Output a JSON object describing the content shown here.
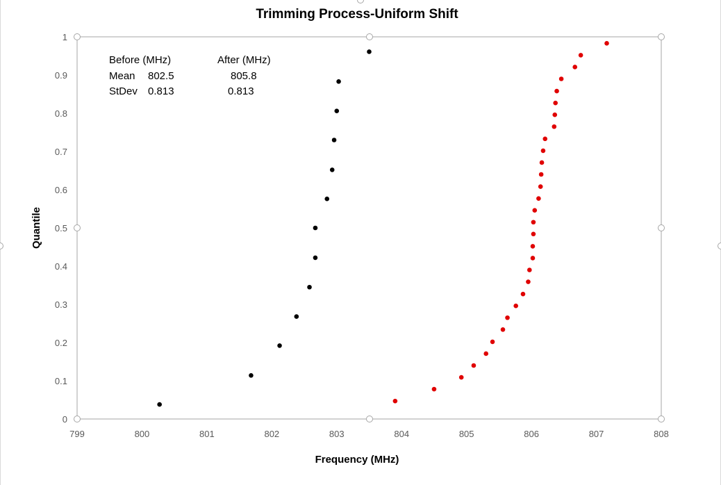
{
  "chart_data": {
    "type": "scatter",
    "title": "Trimming Process-Uniform Shift",
    "xlabel": "Frequency (MHz)",
    "ylabel": "Quantile",
    "xlim": [
      799,
      808
    ],
    "ylim": [
      0,
      1
    ],
    "x_ticks": [
      799,
      800,
      801,
      802,
      803,
      804,
      805,
      806,
      807,
      808
    ],
    "y_ticks": [
      0,
      0.1,
      0.2,
      0.3,
      0.4,
      0.5,
      0.6,
      0.7,
      0.8,
      0.9,
      1
    ],
    "grid": false,
    "legend": "none",
    "series": [
      {
        "color": "#000000",
        "points": [
          [
            800.27,
            0.038
          ],
          [
            801.68,
            0.114
          ],
          [
            802.12,
            0.192
          ],
          [
            802.38,
            0.268
          ],
          [
            802.58,
            0.345
          ],
          [
            802.67,
            0.422
          ],
          [
            802.67,
            0.5
          ],
          [
            802.85,
            0.576
          ],
          [
            802.93,
            0.652
          ],
          [
            802.96,
            0.73
          ],
          [
            803.0,
            0.806
          ],
          [
            803.03,
            0.883
          ],
          [
            803.5,
            0.961
          ]
        ]
      },
      {
        "color": "#e00000",
        "points": [
          [
            803.9,
            0.047
          ],
          [
            804.5,
            0.078
          ],
          [
            804.92,
            0.109
          ],
          [
            805.11,
            0.14
          ],
          [
            805.3,
            0.171
          ],
          [
            805.4,
            0.202
          ],
          [
            805.56,
            0.234
          ],
          [
            805.63,
            0.265
          ],
          [
            805.76,
            0.296
          ],
          [
            805.87,
            0.327
          ],
          [
            805.95,
            0.359
          ],
          [
            805.97,
            0.39
          ],
          [
            806.02,
            0.421
          ],
          [
            806.02,
            0.452
          ],
          [
            806.03,
            0.484
          ],
          [
            806.03,
            0.515
          ],
          [
            806.05,
            0.546
          ],
          [
            806.11,
            0.577
          ],
          [
            806.14,
            0.608
          ],
          [
            806.15,
            0.64
          ],
          [
            806.16,
            0.671
          ],
          [
            806.18,
            0.702
          ],
          [
            806.21,
            0.733
          ],
          [
            806.35,
            0.765
          ],
          [
            806.36,
            0.796
          ],
          [
            806.37,
            0.827
          ],
          [
            806.39,
            0.858
          ],
          [
            806.46,
            0.89
          ],
          [
            806.67,
            0.921
          ],
          [
            806.76,
            0.952
          ],
          [
            807.16,
            0.983
          ]
        ]
      }
    ],
    "annotations": [
      {
        "id": "before-header",
        "text": "Before (MHz)"
      },
      {
        "id": "after-header",
        "text": "After (MHz)"
      },
      {
        "id": "mean-label",
        "text": "Mean"
      },
      {
        "id": "mean-before",
        "text": "802.5"
      },
      {
        "id": "mean-after",
        "text": "805.8"
      },
      {
        "id": "stdev-label",
        "text": "StDev"
      },
      {
        "id": "stdev-before",
        "text": "0.813"
      },
      {
        "id": "stdev-after",
        "text": "0.813"
      }
    ]
  }
}
